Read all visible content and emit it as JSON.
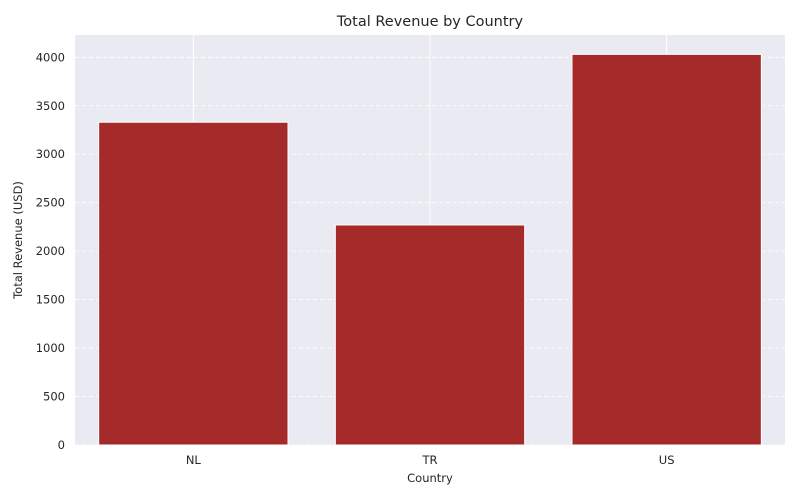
{
  "chart_data": {
    "type": "bar",
    "title": "Total Revenue by Country",
    "xlabel": "Country",
    "ylabel": "Total Revenue (USD)",
    "categories": [
      "NL",
      "TR",
      "US"
    ],
    "values": [
      3330,
      2270,
      4030
    ],
    "ylim": [
      0,
      4230
    ],
    "yticks": [
      0,
      500,
      1000,
      1500,
      2000,
      2500,
      3000,
      3500,
      4000
    ],
    "grid": true,
    "legend": "none",
    "colors": {
      "bar": "#a52a2a",
      "plot_background": "#eaeaf2",
      "grid": "#ffffff"
    }
  }
}
